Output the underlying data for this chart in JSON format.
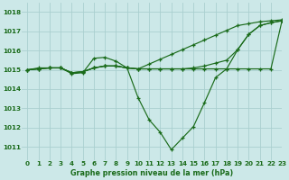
{
  "title": "Graphe pression niveau de la mer (hPa)",
  "bg_color": "#cce8e8",
  "grid_color": "#aacfcf",
  "line_color": "#1a6b1a",
  "xlim": [
    -0.5,
    23
  ],
  "ylim": [
    1010.3,
    1018.5
  ],
  "yticks": [
    1011,
    1012,
    1013,
    1014,
    1015,
    1016,
    1017,
    1018
  ],
  "xticks": [
    0,
    1,
    2,
    3,
    4,
    5,
    6,
    7,
    8,
    9,
    10,
    11,
    12,
    13,
    14,
    15,
    16,
    17,
    18,
    19,
    20,
    21,
    22,
    23
  ],
  "series": {
    "curve_main": [
      1015.0,
      1015.1,
      1015.1,
      1015.1,
      1014.8,
      1014.85,
      1015.6,
      1015.65,
      1015.45,
      1015.1,
      1013.55,
      1012.4,
      1011.75,
      1010.85,
      1011.45,
      1012.05,
      1013.3,
      1014.6,
      1015.05,
      1016.05,
      1016.85,
      1017.3,
      1017.45,
      1017.55
    ],
    "curve_flat": [
      1015.0,
      1015.05,
      1015.1,
      1015.1,
      1014.85,
      1014.9,
      1015.1,
      1015.2,
      1015.2,
      1015.1,
      1015.05,
      1015.05,
      1015.05,
      1015.05,
      1015.05,
      1015.05,
      1015.05,
      1015.05,
      1015.05,
      1015.05,
      1015.05,
      1015.05,
      1015.05,
      1017.55
    ],
    "curve_rise": [
      1015.0,
      1015.05,
      1015.1,
      1015.1,
      1014.85,
      1014.9,
      1015.1,
      1015.2,
      1015.2,
      1015.1,
      1015.05,
      1015.3,
      1015.55,
      1015.8,
      1016.05,
      1016.3,
      1016.55,
      1016.8,
      1017.05,
      1017.3,
      1017.4,
      1017.5,
      1017.55,
      1017.6
    ],
    "curve_mid": [
      1015.0,
      1015.05,
      1015.1,
      1015.1,
      1014.85,
      1014.9,
      1015.1,
      1015.2,
      1015.2,
      1015.1,
      1015.05,
      1015.05,
      1015.05,
      1015.05,
      1015.05,
      1015.1,
      1015.2,
      1015.35,
      1015.5,
      1016.05,
      1016.85,
      1017.3,
      1017.45,
      1017.55
    ]
  }
}
